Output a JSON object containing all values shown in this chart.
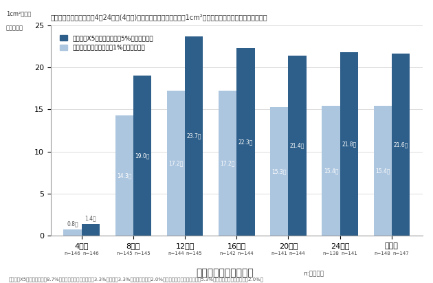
{
  "categories": [
    "4週後",
    "8週後",
    "12週後",
    "16週後",
    "20週後",
    "24週後",
    "終了時"
  ],
  "values_x5": [
    1.4,
    19.0,
    23.7,
    22.3,
    21.4,
    21.8,
    21.6
  ],
  "values_1pct": [
    0.8,
    14.3,
    17.2,
    17.2,
    15.3,
    15.4,
    15.4
  ],
  "labels_x5": [
    "1.4本",
    "19.0本",
    "23.7本",
    "22.3本",
    "21.4本",
    "21.8本",
    "21.6本"
  ],
  "labels_1pct": [
    "0.8本",
    "14.3本",
    "17.2本",
    "17.2本",
    "15.3本",
    "15.4本",
    "15.4本"
  ],
  "n_x5": [
    "n=146",
    "n=145",
    "n=145",
    "n=144",
    "n=144",
    "n=141",
    "n=147"
  ],
  "n_1pct": [
    "n=146",
    "n=145",
    "n=144",
    "n=142",
    "n=141",
    "n=138",
    "n=148"
  ],
  "color_x5": "#2e5f8a",
  "color_1pct": "#adc6df",
  "title": "毛髪数の評価：投与開始4～24週後(4週毎)に開始時と全く同一部位（1cm²）における毛髪数の変化を確認した",
  "ylabel_line1": "1cm²当たり",
  "ylabel_line2": "の増加本数",
  "xlabel": "試験開始後の経過週数",
  "xlabel_sub": "n:被験者数",
  "legend_x5": "リアップX5（ミノキシジル5%ローション）",
  "legend_1pct": "リアップ（ミノキシジル1%ローション）",
  "ylim": [
    0,
    25
  ],
  "yticks": [
    0,
    5,
    10,
    15,
    20,
    25
  ],
  "footnote": "リアップX5の副作用発現率8.7%（主な副作用：接触皮膚炎3.3%、遷移：3.3%、脂漏性皮膚炎2.0%）　リアップの副作用発現率5.3%（主な副作用：接触皮膚炎2.0%）",
  "bar_width": 0.35,
  "bg_color": "#f0f0f0"
}
